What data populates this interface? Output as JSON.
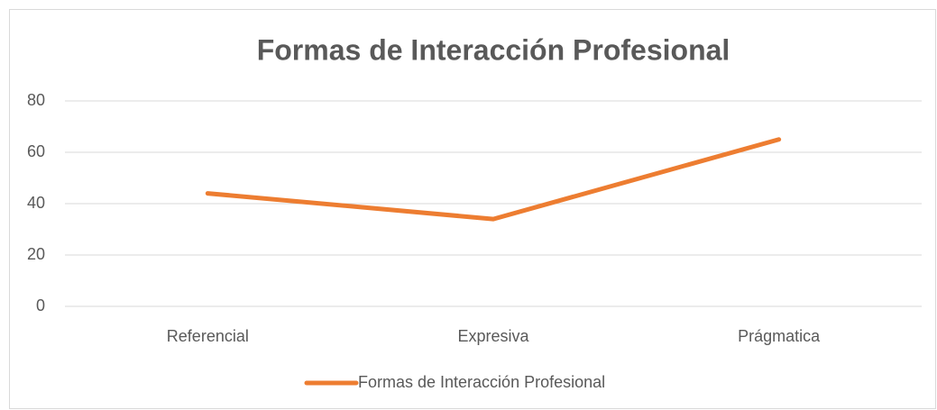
{
  "chart_data": {
    "type": "line",
    "title": "Formas de Interacción Profesional",
    "categories": [
      "Referencial",
      "Expresiva",
      "Prágmatica"
    ],
    "series": [
      {
        "name": "Formas de Interacción Profesional",
        "color": "#ed7d31",
        "values": [
          44,
          34,
          65
        ]
      }
    ],
    "ylim": [
      0,
      80
    ],
    "yticks": [
      0,
      20,
      40,
      60,
      80
    ],
    "grid": true,
    "legend": "bottom"
  }
}
